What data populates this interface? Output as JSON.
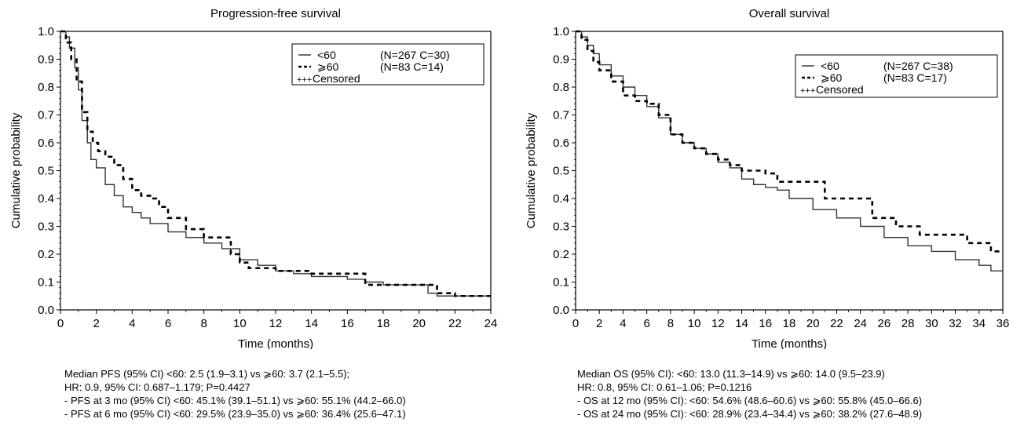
{
  "chart_data": [
    {
      "type": "line",
      "title": "Progression-free survival",
      "xlabel": "Time (months)",
      "ylabel": "Cumulative probability",
      "xlim": [
        0,
        24
      ],
      "ylim": [
        0.0,
        1.0
      ],
      "x_ticks": [
        "0",
        "2",
        "4",
        "6",
        "8",
        "10",
        "12",
        "14",
        "16",
        "18",
        "20",
        "22",
        "24"
      ],
      "y_ticks": [
        "0.0",
        "0.1",
        "0.2",
        "0.3",
        "0.4",
        "0.5",
        "0.6",
        "0.7",
        "0.8",
        "0.9",
        "1.0"
      ],
      "grid": false,
      "legend_position": "top-right",
      "legend": [
        {
          "symbol": "<60",
          "counts": "(N=267 C=30)",
          "style": "solid"
        },
        {
          "symbol": "⩾60",
          "counts": "(N=83 C=14)",
          "style": "dashed"
        },
        {
          "symbol": "+++",
          "counts": "Censored",
          "style": "censor"
        }
      ],
      "series": [
        {
          "style": "solid",
          "color": "#333333",
          "x": [
            0,
            0.3,
            0.5,
            0.8,
            1.0,
            1.2,
            1.5,
            1.7,
            2.0,
            2.5,
            3.0,
            3.5,
            4.0,
            4.5,
            5.0,
            6.0,
            7.0,
            8.0,
            9.0,
            10.0,
            11.0,
            12.0,
            13.0,
            14.0,
            15.0,
            16.0,
            17.0,
            18.0,
            20.0,
            20.5,
            21.0,
            22.0,
            23.0,
            24.0
          ],
          "y": [
            1.0,
            0.98,
            0.94,
            0.87,
            0.79,
            0.68,
            0.6,
            0.54,
            0.51,
            0.45,
            0.41,
            0.37,
            0.35,
            0.33,
            0.31,
            0.28,
            0.26,
            0.24,
            0.22,
            0.18,
            0.16,
            0.14,
            0.13,
            0.12,
            0.12,
            0.11,
            0.1,
            0.09,
            0.09,
            0.06,
            0.05,
            0.05,
            0.05,
            0.05
          ]
        },
        {
          "style": "dashed",
          "color": "#000000",
          "x": [
            0,
            0.3,
            0.6,
            0.9,
            1.2,
            1.5,
            1.8,
            2.1,
            2.5,
            3.0,
            3.5,
            4.0,
            4.5,
            5.0,
            5.5,
            6.0,
            7.0,
            8.0,
            9.0,
            9.5,
            10.0,
            10.5,
            11.0,
            12.0,
            14.0,
            17.0,
            19.0,
            20.5,
            21.0,
            22.0,
            24.0
          ],
          "y": [
            1.0,
            0.96,
            0.9,
            0.82,
            0.71,
            0.64,
            0.6,
            0.57,
            0.55,
            0.52,
            0.47,
            0.43,
            0.41,
            0.4,
            0.37,
            0.33,
            0.29,
            0.26,
            0.26,
            0.2,
            0.17,
            0.15,
            0.15,
            0.14,
            0.13,
            0.09,
            0.09,
            0.09,
            0.06,
            0.05,
            0.05
          ]
        }
      ]
    },
    {
      "type": "line",
      "title": "Overall survival",
      "xlabel": "Time (months)",
      "ylabel": "Cumulative probability",
      "xlim": [
        0,
        36
      ],
      "ylim": [
        0.0,
        1.0
      ],
      "x_ticks": [
        "0",
        "2",
        "4",
        "6",
        "8",
        "10",
        "12",
        "14",
        "16",
        "18",
        "20",
        "22",
        "24",
        "26",
        "28",
        "30",
        "32",
        "34",
        "36"
      ],
      "y_ticks": [
        "0.0",
        "0.1",
        "0.2",
        "0.3",
        "0.4",
        "0.5",
        "0.6",
        "0.7",
        "0.8",
        "0.9",
        "1.0"
      ],
      "grid": false,
      "legend_position": "top-right",
      "legend": [
        {
          "symbol": "<60",
          "counts": "(N=267 C=38)",
          "style": "solid"
        },
        {
          "symbol": "⩾60",
          "counts": "(N=83  C=17)",
          "style": "dashed"
        },
        {
          "symbol": "+++",
          "counts": "Censored",
          "style": "censor"
        }
      ],
      "series": [
        {
          "style": "solid",
          "color": "#333333",
          "x": [
            0,
            0.5,
            1.0,
            1.5,
            2.0,
            3.0,
            4.0,
            5.0,
            6.0,
            7.0,
            8.0,
            9.0,
            10.0,
            11.0,
            12.0,
            13.0,
            14.0,
            15.0,
            16.0,
            17.0,
            18.0,
            20.0,
            22.0,
            24.0,
            26.0,
            28.0,
            30.0,
            32.0,
            34.0,
            35.0,
            36.0
          ],
          "y": [
            1.0,
            0.98,
            0.95,
            0.92,
            0.88,
            0.84,
            0.8,
            0.77,
            0.73,
            0.69,
            0.63,
            0.6,
            0.58,
            0.56,
            0.53,
            0.51,
            0.47,
            0.45,
            0.44,
            0.43,
            0.4,
            0.36,
            0.33,
            0.3,
            0.26,
            0.23,
            0.21,
            0.18,
            0.16,
            0.14,
            0.12
          ]
        },
        {
          "style": "dashed",
          "color": "#000000",
          "x": [
            0,
            0.5,
            1.0,
            1.5,
            2.0,
            3.0,
            4.0,
            5.0,
            6.0,
            7.0,
            8.0,
            9.0,
            10.0,
            11.0,
            12.0,
            13.0,
            14.0,
            15.0,
            16.0,
            17.0,
            18.0,
            20.0,
            21.0,
            24.0,
            25.0,
            27.0,
            29.0,
            30.0,
            33.0,
            35.0,
            36.0
          ],
          "y": [
            1.0,
            0.97,
            0.93,
            0.89,
            0.86,
            0.82,
            0.77,
            0.75,
            0.74,
            0.7,
            0.63,
            0.6,
            0.58,
            0.56,
            0.54,
            0.52,
            0.5,
            0.5,
            0.49,
            0.46,
            0.46,
            0.46,
            0.4,
            0.4,
            0.33,
            0.3,
            0.27,
            0.27,
            0.24,
            0.21,
            0.21
          ]
        }
      ]
    }
  ],
  "stats": {
    "left": [
      "Median PFS (95% CI) <60: 2.5 (1.9–3.1) vs ⩾60: 3.7 (2.1–5.5);",
      "HR: 0.9, 95% CI: 0.687–1.179; P=0.4427",
      "- PFS at 3 mo (95% CI) <60: 45.1% (39.1–51.1) vs ⩾60: 55.1% (44.2–66.0)",
      "- PFS at 6 mo (95% CI) <60: 29.5% (23.9–35.0) vs ⩾60: 36.4% (25.6–47.1)"
    ],
    "right": [
      "Median OS (95% CI): <60: 13.0 (11.3–14.9) vs ⩾60: 14.0 (9.5–23.9)",
      "HR: 0.8, 95% CI: 0.61–1.06; P=0.1216",
      "- OS at 12 mo (95% CI): <60: 54.6% (48.6–60.6) vs ⩾60: 55.8% (45.0–66.6)",
      "- OS at 24 mo (95% CI): <60: 28.9% (23.4–34.4) vs ⩾60: 38.2% (27.6–48.9)"
    ]
  }
}
